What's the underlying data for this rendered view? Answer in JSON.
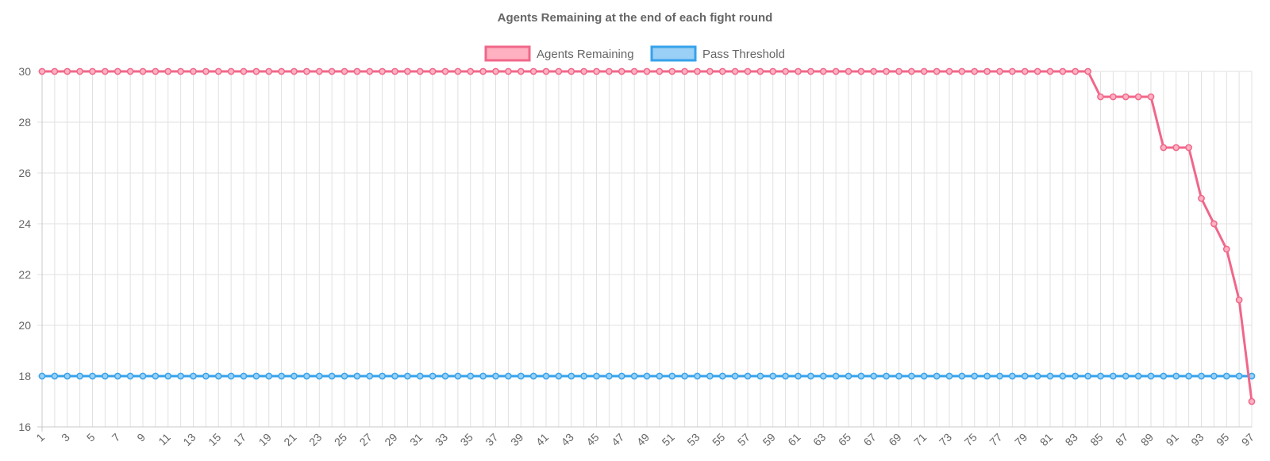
{
  "chart_data": {
    "type": "line",
    "title": "Agents Remaining at the end of each fight round",
    "xlabel": "",
    "ylabel": "",
    "x": [
      1,
      2,
      3,
      4,
      5,
      6,
      7,
      8,
      9,
      10,
      11,
      12,
      13,
      14,
      15,
      16,
      17,
      18,
      19,
      20,
      21,
      22,
      23,
      24,
      25,
      26,
      27,
      28,
      29,
      30,
      31,
      32,
      33,
      34,
      35,
      36,
      37,
      38,
      39,
      40,
      41,
      42,
      43,
      44,
      45,
      46,
      47,
      48,
      49,
      50,
      51,
      52,
      53,
      54,
      55,
      56,
      57,
      58,
      59,
      60,
      61,
      62,
      63,
      64,
      65,
      66,
      67,
      68,
      69,
      70,
      71,
      72,
      73,
      74,
      75,
      76,
      77,
      78,
      79,
      80,
      81,
      82,
      83,
      84,
      85,
      86,
      87,
      88,
      89,
      90,
      91,
      92,
      93,
      94,
      95,
      96,
      97
    ],
    "x_tick_labels": [
      "1",
      "3",
      "5",
      "7",
      "9",
      "11",
      "13",
      "15",
      "17",
      "19",
      "21",
      "23",
      "25",
      "27",
      "29",
      "31",
      "33",
      "35",
      "37",
      "39",
      "41",
      "43",
      "45",
      "47",
      "49",
      "51",
      "53",
      "55",
      "57",
      "59",
      "61",
      "63",
      "65",
      "67",
      "69",
      "71",
      "73",
      "75",
      "77",
      "79",
      "81",
      "83",
      "85",
      "87",
      "89",
      "91",
      "93",
      "95",
      "97"
    ],
    "y_tick_labels": [
      "16",
      "18",
      "20",
      "22",
      "24",
      "26",
      "28",
      "30"
    ],
    "ylim": [
      16,
      30
    ],
    "y_ticks": [
      16,
      18,
      20,
      22,
      24,
      26,
      28,
      30
    ],
    "grid": true,
    "legend_position": "top-center",
    "series": [
      {
        "name": "Agents Remaining",
        "color": "#f0678a",
        "fill": "#ffb1c1",
        "values": [
          30,
          30,
          30,
          30,
          30,
          30,
          30,
          30,
          30,
          30,
          30,
          30,
          30,
          30,
          30,
          30,
          30,
          30,
          30,
          30,
          30,
          30,
          30,
          30,
          30,
          30,
          30,
          30,
          30,
          30,
          30,
          30,
          30,
          30,
          30,
          30,
          30,
          30,
          30,
          30,
          30,
          30,
          30,
          30,
          30,
          30,
          30,
          30,
          30,
          30,
          30,
          30,
          30,
          30,
          30,
          30,
          30,
          30,
          30,
          30,
          30,
          30,
          30,
          30,
          30,
          30,
          30,
          30,
          30,
          30,
          30,
          30,
          30,
          30,
          30,
          30,
          30,
          30,
          30,
          30,
          30,
          30,
          30,
          30,
          29,
          29,
          29,
          29,
          29,
          27,
          27,
          27,
          25,
          24,
          23,
          21,
          17
        ]
      },
      {
        "name": "Pass Threshold",
        "color": "#36a2eb",
        "fill": "#9ad0f5",
        "values": [
          18,
          18,
          18,
          18,
          18,
          18,
          18,
          18,
          18,
          18,
          18,
          18,
          18,
          18,
          18,
          18,
          18,
          18,
          18,
          18,
          18,
          18,
          18,
          18,
          18,
          18,
          18,
          18,
          18,
          18,
          18,
          18,
          18,
          18,
          18,
          18,
          18,
          18,
          18,
          18,
          18,
          18,
          18,
          18,
          18,
          18,
          18,
          18,
          18,
          18,
          18,
          18,
          18,
          18,
          18,
          18,
          18,
          18,
          18,
          18,
          18,
          18,
          18,
          18,
          18,
          18,
          18,
          18,
          18,
          18,
          18,
          18,
          18,
          18,
          18,
          18,
          18,
          18,
          18,
          18,
          18,
          18,
          18,
          18,
          18,
          18,
          18,
          18,
          18,
          18,
          18,
          18,
          18,
          18,
          18,
          18,
          18
        ]
      }
    ]
  }
}
